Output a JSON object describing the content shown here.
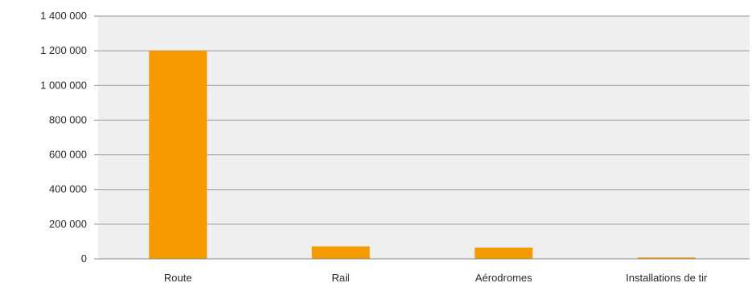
{
  "chart_data": {
    "type": "bar",
    "categories": [
      "Route",
      "Rail",
      "Aérodromes",
      "Installations de tir"
    ],
    "values": [
      1200000,
      72000,
      65000,
      8000
    ],
    "ylim": [
      0,
      1400000
    ],
    "yticks": [
      0,
      200000,
      400000,
      600000,
      800000,
      1000000,
      1200000,
      1400000
    ],
    "ytick_labels": [
      "0",
      "200 000",
      "400 000",
      "600 000",
      "800 000",
      "1 000 000",
      "1 200 000",
      "1 400 000"
    ],
    "grid": true,
    "legend": "none",
    "colors": {
      "bar": "#f59b00",
      "plot_background": "#efefef",
      "grid": "#9a9a9a"
    }
  }
}
